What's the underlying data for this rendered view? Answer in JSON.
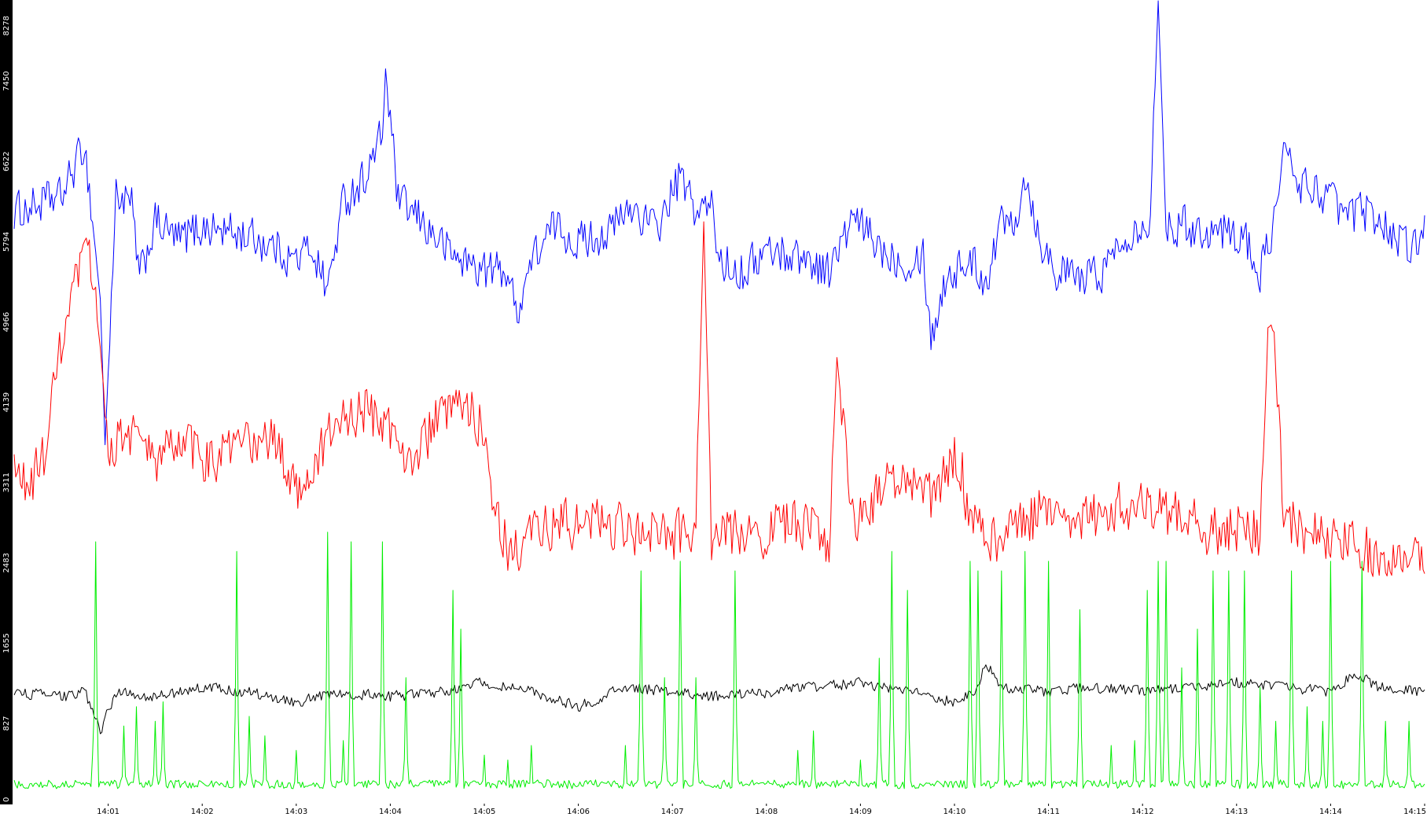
{
  "chart_data": {
    "type": "line",
    "title": "",
    "xlabel": "",
    "ylabel": "",
    "grid": false,
    "legend": "none",
    "colors": {
      "background": "#ffffff",
      "y_axis_band": "#000000",
      "y_axis_text": "#ffffff",
      "x_axis_text": "#000000"
    },
    "ylim": [
      0,
      8278
    ],
    "y_ticks": [
      0,
      827,
      1655,
      2483,
      3311,
      4139,
      4966,
      5794,
      6622,
      7450,
      8278
    ],
    "y_tick_labels": [
      "0",
      "827",
      "1655",
      "2483",
      "3311",
      "4139",
      "4966",
      "5794",
      "6622",
      "7450",
      "8278"
    ],
    "xlim": [
      "14:00:00",
      "14:15:00"
    ],
    "x_tick_labels": [
      "14:01",
      "14:02",
      "14:03",
      "14:04",
      "14:05",
      "14:06",
      "14:07",
      "14:08",
      "14:09",
      "14:10",
      "14:11",
      "14:12",
      "14:13",
      "14:14",
      "14:15"
    ],
    "sample_interval": "1s",
    "series": [
      {
        "color": "#0000ff",
        "points": [
          [
            "14:00:00",
            6100
          ],
          [
            "14:00:30",
            6250
          ],
          [
            "14:00:45",
            6800
          ],
          [
            "14:00:55",
            5200
          ],
          [
            "14:00:58",
            3700
          ],
          [
            "14:01:05",
            6300
          ],
          [
            "14:01:15",
            6150
          ],
          [
            "14:01:20",
            5400
          ],
          [
            "14:01:30",
            6000
          ],
          [
            "14:01:45",
            5800
          ],
          [
            "14:02:00",
            5950
          ],
          [
            "14:02:30",
            5850
          ],
          [
            "14:02:45",
            5750
          ],
          [
            "14:03:00",
            5600
          ],
          [
            "14:03:10",
            5750
          ],
          [
            "14:03:20",
            5300
          ],
          [
            "14:03:30",
            6200
          ],
          [
            "14:03:45",
            6500
          ],
          [
            "14:03:55",
            6900
          ],
          [
            "14:03:57",
            7550
          ],
          [
            "14:04:05",
            6200
          ],
          [
            "14:04:20",
            6000
          ],
          [
            "14:04:40",
            5650
          ],
          [
            "14:05:00",
            5500
          ],
          [
            "14:05:15",
            5500
          ],
          [
            "14:05:20",
            5050
          ],
          [
            "14:05:30",
            5600
          ],
          [
            "14:05:45",
            5950
          ],
          [
            "14:06:00",
            5800
          ],
          [
            "14:06:20",
            5900
          ],
          [
            "14:06:35",
            6150
          ],
          [
            "14:06:50",
            5900
          ],
          [
            "14:07:00",
            6300
          ],
          [
            "14:07:05",
            6450
          ],
          [
            "14:07:15",
            6100
          ],
          [
            "14:07:25",
            6150
          ],
          [
            "14:07:30",
            5600
          ],
          [
            "14:07:45",
            5500
          ],
          [
            "14:08:00",
            5700
          ],
          [
            "14:08:20",
            5650
          ],
          [
            "14:08:40",
            5500
          ],
          [
            "14:08:55",
            6000
          ],
          [
            "14:09:00",
            5950
          ],
          [
            "14:09:15",
            5700
          ],
          [
            "14:09:30",
            5600
          ],
          [
            "14:09:40",
            5700
          ],
          [
            "14:09:45",
            4800
          ],
          [
            "14:09:55",
            5450
          ],
          [
            "14:10:10",
            5600
          ],
          [
            "14:10:20",
            5400
          ],
          [
            "14:10:30",
            6000
          ],
          [
            "14:10:40",
            6100
          ],
          [
            "14:10:45",
            6500
          ],
          [
            "14:10:55",
            5800
          ],
          [
            "14:11:05",
            5500
          ],
          [
            "14:11:20",
            5400
          ],
          [
            "14:11:35",
            5500
          ],
          [
            "14:11:50",
            5900
          ],
          [
            "14:12:05",
            6050
          ],
          [
            "14:12:10",
            8278
          ],
          [
            "14:12:15",
            6000
          ],
          [
            "14:12:30",
            5950
          ],
          [
            "14:12:50",
            5900
          ],
          [
            "14:13:05",
            5850
          ],
          [
            "14:13:15",
            5450
          ],
          [
            "14:13:25",
            6100
          ],
          [
            "14:13:30",
            6700
          ],
          [
            "14:13:40",
            6400
          ],
          [
            "14:13:55",
            6300
          ],
          [
            "14:14:10",
            6050
          ],
          [
            "14:14:25",
            6100
          ],
          [
            "14:14:40",
            5900
          ],
          [
            "14:14:50",
            5700
          ],
          [
            "14:15:00",
            5950
          ]
        ]
      },
      {
        "color": "#ff0000",
        "points": [
          [
            "14:00:00",
            3400
          ],
          [
            "14:00:10",
            3250
          ],
          [
            "14:00:20",
            3650
          ],
          [
            "14:00:30",
            4700
          ],
          [
            "14:00:40",
            5350
          ],
          [
            "14:00:48",
            5700
          ],
          [
            "14:00:55",
            4700
          ],
          [
            "14:01:00",
            3700
          ],
          [
            "14:01:15",
            3850
          ],
          [
            "14:01:30",
            3500
          ],
          [
            "14:01:45",
            3750
          ],
          [
            "14:02:00",
            3550
          ],
          [
            "14:02:15",
            3600
          ],
          [
            "14:02:30",
            3700
          ],
          [
            "14:02:45",
            3750
          ],
          [
            "14:03:00",
            3250
          ],
          [
            "14:03:15",
            3600
          ],
          [
            "14:03:30",
            4000
          ],
          [
            "14:03:45",
            4050
          ],
          [
            "14:04:00",
            3850
          ],
          [
            "14:04:15",
            3550
          ],
          [
            "14:04:30",
            3950
          ],
          [
            "14:04:45",
            4050
          ],
          [
            "14:05:00",
            3950
          ],
          [
            "14:05:05",
            3200
          ],
          [
            "14:05:15",
            2600
          ],
          [
            "14:05:30",
            2750
          ],
          [
            "14:05:45",
            2900
          ],
          [
            "14:06:00",
            2850
          ],
          [
            "14:06:15",
            2950
          ],
          [
            "14:06:30",
            2800
          ],
          [
            "14:06:45",
            2850
          ],
          [
            "14:07:00",
            2750
          ],
          [
            "14:07:15",
            2800
          ],
          [
            "14:07:20",
            6000
          ],
          [
            "14:07:25",
            2700
          ],
          [
            "14:07:45",
            2850
          ],
          [
            "14:08:00",
            2800
          ],
          [
            "14:08:20",
            2900
          ],
          [
            "14:08:40",
            2700
          ],
          [
            "14:08:45",
            4600
          ],
          [
            "14:08:55",
            2900
          ],
          [
            "14:09:10",
            3200
          ],
          [
            "14:09:30",
            3400
          ],
          [
            "14:09:45",
            3100
          ],
          [
            "14:10:00",
            3550
          ],
          [
            "14:10:05",
            3450
          ],
          [
            "14:10:10",
            2850
          ],
          [
            "14:10:30",
            2700
          ],
          [
            "14:10:45",
            2900
          ],
          [
            "14:11:00",
            3100
          ],
          [
            "14:11:15",
            3000
          ],
          [
            "14:11:30",
            2950
          ],
          [
            "14:11:45",
            3100
          ],
          [
            "14:12:00",
            3050
          ],
          [
            "14:12:15",
            3000
          ],
          [
            "14:12:30",
            2900
          ],
          [
            "14:12:45",
            2800
          ],
          [
            "14:13:00",
            2850
          ],
          [
            "14:13:15",
            2800
          ],
          [
            "14:13:20",
            5150
          ],
          [
            "14:13:25",
            4500
          ],
          [
            "14:13:30",
            2950
          ],
          [
            "14:13:45",
            2800
          ],
          [
            "14:14:00",
            2700
          ],
          [
            "14:14:15",
            2650
          ],
          [
            "14:14:30",
            2600
          ],
          [
            "14:14:45",
            2550
          ],
          [
            "14:15:00",
            2600
          ]
        ]
      },
      {
        "color": "#000000",
        "points": [
          [
            "14:00:00",
            1150
          ],
          [
            "14:00:30",
            1100
          ],
          [
            "14:00:45",
            1150
          ],
          [
            "14:00:55",
            750
          ],
          [
            "14:01:05",
            1150
          ],
          [
            "14:01:30",
            1100
          ],
          [
            "14:02:00",
            1200
          ],
          [
            "14:02:30",
            1150
          ],
          [
            "14:03:00",
            1050
          ],
          [
            "14:03:30",
            1150
          ],
          [
            "14:04:00",
            1100
          ],
          [
            "14:04:30",
            1150
          ],
          [
            "14:05:00",
            1250
          ],
          [
            "14:05:30",
            1150
          ],
          [
            "14:06:00",
            1000
          ],
          [
            "14:06:30",
            1200
          ],
          [
            "14:07:00",
            1150
          ],
          [
            "14:07:30",
            1100
          ],
          [
            "14:08:00",
            1150
          ],
          [
            "14:08:30",
            1200
          ],
          [
            "14:09:00",
            1250
          ],
          [
            "14:09:30",
            1150
          ],
          [
            "14:10:00",
            1050
          ],
          [
            "14:10:15",
            1200
          ],
          [
            "14:10:20",
            1450
          ],
          [
            "14:10:30",
            1200
          ],
          [
            "14:11:00",
            1150
          ],
          [
            "14:11:30",
            1200
          ],
          [
            "14:12:00",
            1150
          ],
          [
            "14:12:30",
            1200
          ],
          [
            "14:13:00",
            1250
          ],
          [
            "14:13:30",
            1200
          ],
          [
            "14:14:00",
            1150
          ],
          [
            "14:14:15",
            1350
          ],
          [
            "14:14:30",
            1200
          ],
          [
            "14:15:00",
            1150
          ]
        ]
      },
      {
        "color": "#00ee00",
        "baseline": 200,
        "spikes": [
          [
            "14:00:50",
            500
          ],
          [
            "14:00:52",
            2700
          ],
          [
            "14:01:10",
            800
          ],
          [
            "14:01:18",
            1000
          ],
          [
            "14:01:30",
            850
          ],
          [
            "14:01:35",
            1050
          ],
          [
            "14:02:22",
            2600
          ],
          [
            "14:02:30",
            900
          ],
          [
            "14:02:40",
            700
          ],
          [
            "14:03:00",
            550
          ],
          [
            "14:03:20",
            2800
          ],
          [
            "14:03:30",
            650
          ],
          [
            "14:03:35",
            2700
          ],
          [
            "14:03:55",
            2700
          ],
          [
            "14:04:10",
            1300
          ],
          [
            "14:04:40",
            2200
          ],
          [
            "14:04:45",
            1800
          ],
          [
            "14:05:00",
            500
          ],
          [
            "14:05:15",
            450
          ],
          [
            "14:05:30",
            600
          ],
          [
            "14:06:30",
            600
          ],
          [
            "14:06:40",
            2400
          ],
          [
            "14:06:55",
            1300
          ],
          [
            "14:07:05",
            2500
          ],
          [
            "14:07:15",
            1300
          ],
          [
            "14:07:40",
            2400
          ],
          [
            "14:08:20",
            550
          ],
          [
            "14:08:30",
            750
          ],
          [
            "14:09:00",
            450
          ],
          [
            "14:09:12",
            1500
          ],
          [
            "14:09:20",
            2600
          ],
          [
            "14:09:30",
            2200
          ],
          [
            "14:10:10",
            2500
          ],
          [
            "14:10:15",
            2400
          ],
          [
            "14:10:30",
            2400
          ],
          [
            "14:10:45",
            2600
          ],
          [
            "14:11:00",
            2500
          ],
          [
            "14:11:20",
            2000
          ],
          [
            "14:11:40",
            600
          ],
          [
            "14:11:55",
            650
          ],
          [
            "14:12:03",
            2200
          ],
          [
            "14:12:10",
            2500
          ],
          [
            "14:12:15",
            2500
          ],
          [
            "14:12:25",
            1400
          ],
          [
            "14:12:35",
            1800
          ],
          [
            "14:12:45",
            2400
          ],
          [
            "14:12:55",
            2400
          ],
          [
            "14:13:05",
            2400
          ],
          [
            "14:13:15",
            1200
          ],
          [
            "14:13:25",
            850
          ],
          [
            "14:13:35",
            2400
          ],
          [
            "14:13:45",
            1000
          ],
          [
            "14:13:55",
            850
          ],
          [
            "14:14:00",
            2500
          ],
          [
            "14:14:20",
            2500
          ],
          [
            "14:14:35",
            850
          ],
          [
            "14:14:50",
            850
          ]
        ]
      }
    ]
  }
}
